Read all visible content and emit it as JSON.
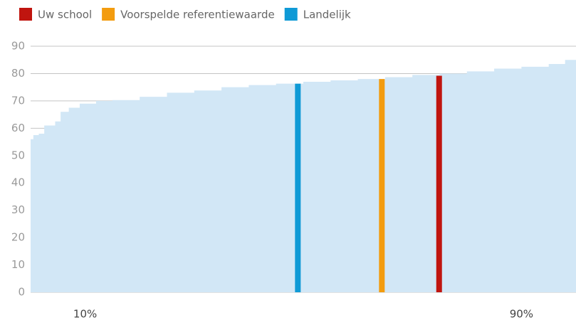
{
  "chart_data": {
    "type": "area",
    "color": "#d2e7f6",
    "x": [
      0,
      0.5,
      1.5,
      2.5,
      4.5,
      5.5,
      7,
      9,
      12,
      15,
      20,
      25,
      30,
      35,
      40,
      45,
      50,
      55,
      60,
      65,
      70,
      75,
      80,
      85,
      90,
      95,
      98,
      100
    ],
    "values": [
      56,
      57.5,
      58,
      61,
      62.5,
      66,
      67.5,
      69,
      70,
      70.3,
      71.5,
      73,
      73.8,
      75,
      75.8,
      76.3,
      77,
      77.5,
      78,
      78.7,
      79.5,
      80,
      80.8,
      81.8,
      82.5,
      83.5,
      85,
      86.5
    ],
    "xlim": [
      0,
      100
    ],
    "xticks": [
      {
        "value": 10,
        "label": "10%"
      },
      {
        "value": 90,
        "label": "90%"
      }
    ],
    "ylim": [
      0,
      90
    ],
    "yticks": [
      0,
      10,
      20,
      30,
      40,
      50,
      60,
      70,
      80,
      90
    ],
    "grid": true,
    "series": [
      {
        "name": "Uw school",
        "color": "#c0150f",
        "x": [
          74.9
        ],
        "values": [
          79.2
        ]
      },
      {
        "name": "Voorspelde referentiewaarde",
        "color": "#f39c0f",
        "x": [
          64.4
        ],
        "values": [
          78
        ]
      },
      {
        "name": "Landelijk",
        "color": "#0f9ad6",
        "x": [
          49
        ],
        "values": [
          76.3
        ]
      }
    ]
  }
}
